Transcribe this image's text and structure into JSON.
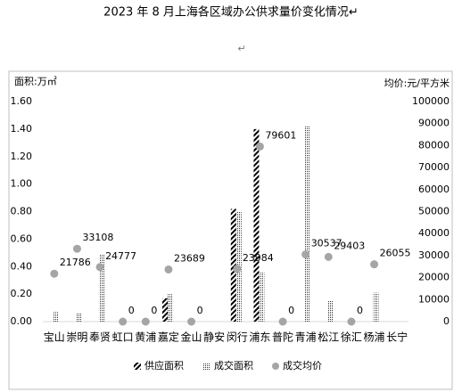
{
  "chart_data": {
    "type": "combo",
    "title": "2023 年 8 月上海各区域办公供求量价变化情况↵",
    "paragraph_mark": "↵",
    "y_label": "面积:万㎡",
    "y2_label": "均价:元/平方米",
    "categories": [
      "宝山",
      "崇明",
      "奉贤",
      "虹口",
      "黄浦",
      "嘉定",
      "金山",
      "静安",
      "闵行",
      "浦东",
      "普陀",
      "青浦",
      "松江",
      "徐汇",
      "杨浦",
      "长宁"
    ],
    "series": [
      {
        "name": "供应面积",
        "kind": "bar",
        "pattern": "hatch",
        "color": "#000000",
        "values": [
          0,
          0,
          0,
          0,
          0,
          0.17,
          0,
          0,
          0.82,
          1.4,
          0,
          0,
          0,
          0,
          0,
          0
        ]
      },
      {
        "name": "成交面积",
        "kind": "bar",
        "pattern": "dots",
        "color": "#404040",
        "values": [
          0.07,
          0.06,
          0.49,
          0,
          0,
          0.2,
          0,
          0,
          0.8,
          0.36,
          0,
          1.42,
          0.15,
          0,
          0.21,
          0
        ]
      },
      {
        "name": "成交均价",
        "kind": "scatter",
        "axis": "y2",
        "color": "#a5a5a5",
        "values": [
          21786,
          33108,
          24777,
          0,
          0,
          23689,
          0,
          null,
          23984,
          79601,
          0,
          30537,
          29403,
          0,
          26055,
          null
        ]
      }
    ],
    "ylim": [
      0,
      1.6
    ],
    "yticks": [
      {
        "value": 0,
        "label": "0.00"
      },
      {
        "value": 0.2,
        "label": "0.20"
      },
      {
        "value": 0.4,
        "label": "0.40"
      },
      {
        "value": 0.6,
        "label": "0.60"
      },
      {
        "value": 0.8,
        "label": "0.80"
      },
      {
        "value": 1.0,
        "label": "1.00"
      },
      {
        "value": 1.2,
        "label": "1.20"
      },
      {
        "value": 1.4,
        "label": "1.40"
      },
      {
        "value": 1.6,
        "label": "1.60"
      }
    ],
    "y2lim": [
      0,
      100000
    ],
    "y2ticks": [
      0,
      10000,
      20000,
      30000,
      40000,
      50000,
      60000,
      70000,
      80000,
      90000,
      100000
    ],
    "legend": "bottom"
  }
}
